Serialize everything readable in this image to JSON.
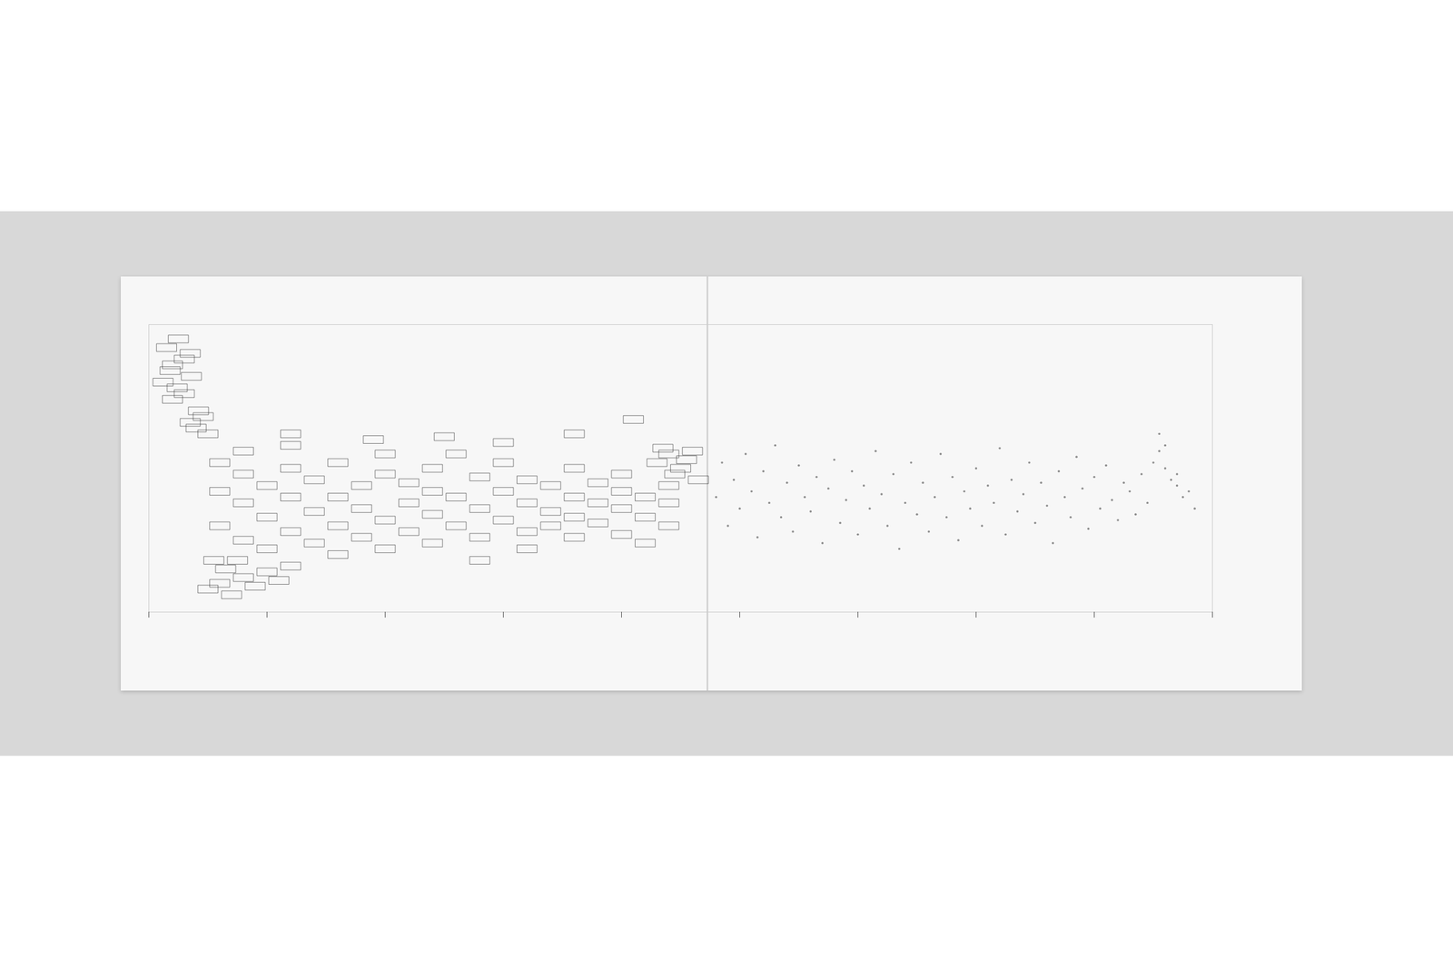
{
  "chart_data": {
    "type": "scatter",
    "xlim": [
      0,
      90
    ],
    "xticks": [
      0,
      10,
      20,
      30,
      40,
      50,
      60,
      70,
      80,
      90
    ],
    "ylim": [
      0,
      100
    ],
    "yticks": [],
    "tick_labels": false,
    "grid": false,
    "series": [
      {
        "marker": "rectangle",
        "color": "#111111",
        "x": [
          1.5,
          2.5,
          3.5,
          2,
          3,
          1.2,
          2.4,
          3.6,
          2,
          3,
          4,
          3.5,
          4.6,
          5,
          4.2,
          1.8,
          5,
          6,
          7,
          8,
          6.5,
          9,
          10,
          11,
          5.5,
          7.5,
          12,
          43,
          44,
          45,
          46,
          44.5,
          45.5,
          43.5,
          46.5,
          6,
          6,
          6,
          8,
          8,
          8,
          8,
          10,
          10,
          10,
          12,
          12,
          12,
          12,
          14,
          14,
          14,
          16,
          16,
          16,
          16,
          18,
          18,
          18,
          20,
          20,
          20,
          20,
          22,
          22,
          22,
          24,
          24,
          24,
          24,
          26,
          26,
          26,
          28,
          28,
          28,
          28,
          30,
          30,
          30,
          32,
          32,
          32,
          32,
          34,
          34,
          34,
          36,
          36,
          36,
          36,
          38,
          38,
          38,
          40,
          40,
          40,
          40,
          42,
          42,
          42,
          44,
          44,
          44,
          12,
          19,
          25,
          30,
          36,
          41
        ],
        "y": [
          92,
          95,
          90,
          86,
          88,
          80,
          78,
          82,
          74,
          76,
          64,
          66,
          68,
          62,
          70,
          84,
          8,
          10,
          6,
          12,
          15,
          9,
          14,
          11,
          18,
          18,
          16,
          52,
          55,
          50,
          56,
          48,
          53,
          57,
          46,
          30,
          42,
          52,
          25,
          38,
          48,
          56,
          33,
          44,
          22,
          28,
          50,
          40,
          58,
          35,
          24,
          46,
          30,
          52,
          40,
          20,
          26,
          44,
          36,
          32,
          48,
          55,
          22,
          38,
          28,
          45,
          34,
          50,
          24,
          42,
          30,
          40,
          55,
          36,
          26,
          47,
          18,
          42,
          32,
          52,
          28,
          38,
          46,
          22,
          35,
          44,
          30,
          40,
          26,
          50,
          33,
          31,
          45,
          38,
          36,
          27,
          48,
          42,
          33,
          40,
          24,
          38,
          30,
          44,
          62,
          60,
          61,
          59,
          62,
          67
        ]
      },
      {
        "marker": "dot",
        "color": "#333333",
        "x": [
          48,
          48.5,
          49,
          49.5,
          50,
          50.5,
          51,
          51.5,
          52,
          52.5,
          53,
          53.5,
          54,
          54.5,
          55,
          55.5,
          56,
          56.5,
          57,
          57.5,
          58,
          58.5,
          59,
          59.5,
          60,
          60.5,
          61,
          61.5,
          62,
          62.5,
          63,
          63.5,
          64,
          64.5,
          65,
          65.5,
          66,
          66.5,
          67,
          67.5,
          68,
          68.5,
          69,
          69.5,
          70,
          70.5,
          71,
          71.5,
          72,
          72.5,
          73,
          73.5,
          74,
          74.5,
          75,
          75.5,
          76,
          76.5,
          77,
          77.5,
          78,
          78.5,
          79,
          79.5,
          80,
          80.5,
          81,
          81.5,
          82,
          82.5,
          83,
          83.5,
          84,
          84.5,
          85,
          85.5,
          86,
          86.5,
          87,
          87.5,
          88,
          88.5,
          86,
          85.5,
          87
        ],
        "y": [
          40,
          52,
          30,
          46,
          36,
          55,
          42,
          26,
          49,
          38,
          58,
          33,
          45,
          28,
          51,
          40,
          35,
          47,
          24,
          43,
          53,
          31,
          39,
          49,
          27,
          44,
          36,
          56,
          41,
          30,
          48,
          22,
          38,
          52,
          34,
          45,
          28,
          40,
          55,
          33,
          47,
          25,
          42,
          36,
          50,
          30,
          44,
          38,
          57,
          27,
          46,
          35,
          41,
          52,
          31,
          45,
          37,
          24,
          49,
          40,
          33,
          54,
          43,
          29,
          47,
          36,
          51,
          39,
          32,
          45,
          42,
          34,
          48,
          38,
          52,
          56,
          50,
          46,
          44,
          40,
          42,
          36,
          58,
          62,
          48
        ]
      }
    ]
  }
}
